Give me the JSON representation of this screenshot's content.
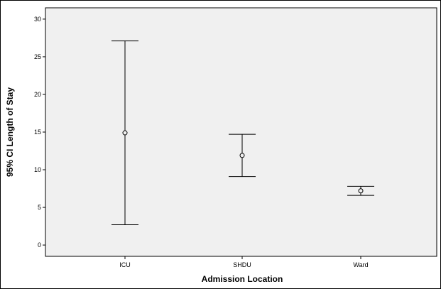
{
  "chart_data": {
    "type": "errorbar",
    "xlabel": "Admission Location",
    "ylabel": "95% CI Length of Stay",
    "categories": [
      "ICU",
      "SHDU",
      "Ward"
    ],
    "series": [
      {
        "means": [
          14.9,
          11.9,
          7.2
        ],
        "lower": [
          2.7,
          9.1,
          6.6
        ],
        "upper": [
          27.1,
          14.7,
          7.8
        ]
      }
    ],
    "ylim": [
      -1.5,
      31.5
    ],
    "yticks": [
      0,
      5,
      10,
      15,
      20,
      25,
      30
    ],
    "grid": false,
    "colors": {
      "plot_bg": "#F0F0F0",
      "frame": "#000000",
      "bars": "#000000"
    }
  }
}
